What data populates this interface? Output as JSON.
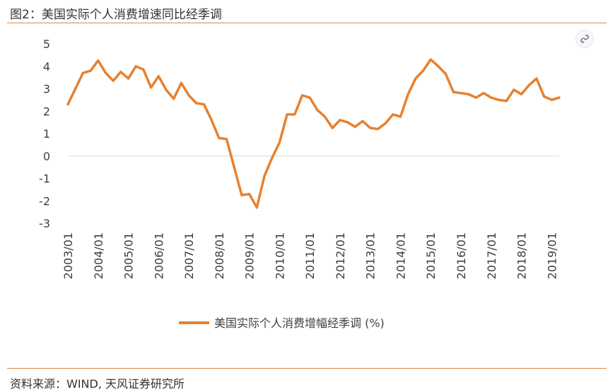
{
  "figure": {
    "title": "图2：美国实际个人消费增速同比经季调",
    "source": "资料来源：WIND, 天风证券研究所",
    "corner_icon": "link-icon"
  },
  "colors": {
    "series": "#e8812f",
    "rule": "#d98a4a",
    "axis": "#d9d9d9"
  },
  "chart_data": {
    "type": "line",
    "title": "",
    "xlabel": "",
    "ylabel": "",
    "ylim": [
      -3,
      5
    ],
    "yticks": [
      "5",
      "4",
      "3",
      "2",
      "1",
      "0",
      "-1",
      "-2",
      "-3"
    ],
    "xticks": [
      "2003/01",
      "2004/01",
      "2005/01",
      "2006/01",
      "2007/01",
      "2008/01",
      "2009/01",
      "2010/01",
      "2011/01",
      "2012/01",
      "2013/01",
      "2014/01",
      "2015/01",
      "2016/01",
      "2017/01",
      "2018/01",
      "2019/01"
    ],
    "grid": false,
    "legend_position": "bottom-center",
    "series": [
      {
        "name": "美国实际个人消费增幅经季调 (%)",
        "x_start": "2003-01",
        "x_step_months": 3,
        "values": [
          2.3,
          3.0,
          3.7,
          3.8,
          4.25,
          3.7,
          3.35,
          3.75,
          3.45,
          4.0,
          3.85,
          3.05,
          3.55,
          2.95,
          2.55,
          3.25,
          2.7,
          2.35,
          2.3,
          1.6,
          0.8,
          0.75,
          -0.5,
          -1.75,
          -1.7,
          -2.3,
          -0.9,
          -0.1,
          0.6,
          1.85,
          1.85,
          2.7,
          2.6,
          2.05,
          1.75,
          1.25,
          1.6,
          1.5,
          1.3,
          1.55,
          1.25,
          1.2,
          1.45,
          1.85,
          1.75,
          2.75,
          3.45,
          3.8,
          4.3,
          4.0,
          3.65,
          2.85,
          2.8,
          2.75,
          2.6,
          2.8,
          2.6,
          2.5,
          2.45,
          2.95,
          2.75,
          3.15,
          3.45,
          2.65,
          2.5,
          2.6
        ]
      }
    ]
  }
}
